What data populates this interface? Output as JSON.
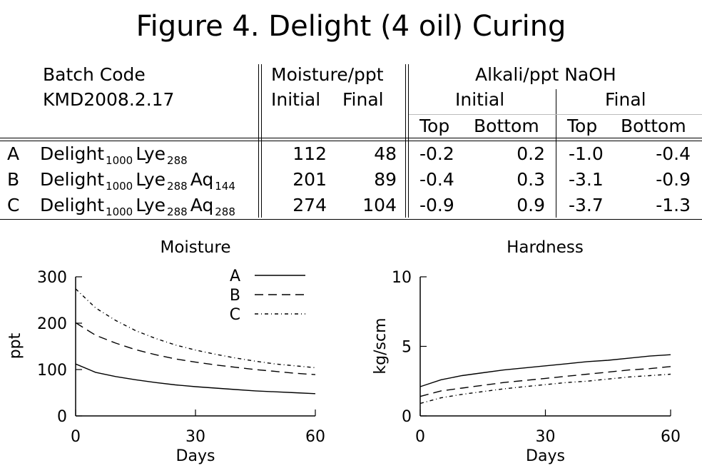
{
  "figure_title": "Figure 4. Delight (4 oil) Curing",
  "table": {
    "batch_code_label": "Batch Code",
    "batch_code_value": "KMD2008.2.17",
    "moisture_header": "Moisture/ppt",
    "moisture_initial": "Initial",
    "moisture_final": "Final",
    "alkali_header": "Alkali/ppt NaOH",
    "alkali_initial": "Initial",
    "alkali_final": "Final",
    "top": "Top",
    "bottom": "Bottom",
    "rows": [
      {
        "id": "A",
        "parts": [
          {
            "name": "Delight",
            "sub": "1000"
          },
          {
            "name": "Lye",
            "sub": "288"
          }
        ],
        "m_init": "112",
        "m_final": "48",
        "a_init_top": "-0.2",
        "a_init_bottom": "0.2",
        "a_final_top": "-1.0",
        "a_final_bottom": "-0.4"
      },
      {
        "id": "B",
        "parts": [
          {
            "name": "Delight",
            "sub": "1000"
          },
          {
            "name": "Lye",
            "sub": "288"
          },
          {
            "name": "Aq",
            "sub": "144"
          }
        ],
        "m_init": "201",
        "m_final": "89",
        "a_init_top": "-0.4",
        "a_init_bottom": "0.3",
        "a_final_top": "-3.1",
        "a_final_bottom": "-0.9"
      },
      {
        "id": "C",
        "parts": [
          {
            "name": "Delight",
            "sub": "1000"
          },
          {
            "name": "Lye",
            "sub": "288"
          },
          {
            "name": "Aq",
            "sub": "288"
          }
        ],
        "m_init": "274",
        "m_final": "104",
        "a_init_top": "-0.9",
        "a_init_bottom": "0.9",
        "a_final_top": "-3.7",
        "a_final_bottom": "-1.3"
      }
    ]
  },
  "chart_data": [
    {
      "type": "line",
      "title": "Moisture",
      "xlabel": "Days",
      "ylabel": "ppt",
      "xlim": [
        0,
        60
      ],
      "ylim": [
        0,
        300
      ],
      "xticks": [
        "0",
        "30",
        "60"
      ],
      "yticks": [
        "0",
        "100",
        "200",
        "300"
      ],
      "legend_position": "top-right",
      "series": [
        {
          "name": "A",
          "style": "solid",
          "x": [
            0,
            5,
            10,
            15,
            20,
            25,
            30,
            35,
            40,
            45,
            50,
            55,
            60
          ],
          "values": [
            112,
            94,
            85,
            78,
            72,
            67,
            63,
            60,
            57,
            54,
            52,
            50,
            48
          ]
        },
        {
          "name": "B",
          "style": "dashed",
          "x": [
            0,
            5,
            10,
            15,
            20,
            25,
            30,
            35,
            40,
            45,
            50,
            55,
            60
          ],
          "values": [
            201,
            174,
            157,
            143,
            132,
            123,
            116,
            110,
            105,
            100,
            96,
            92,
            89
          ]
        },
        {
          "name": "C",
          "style": "dashdot",
          "x": [
            0,
            5,
            10,
            15,
            20,
            25,
            30,
            35,
            40,
            45,
            50,
            55,
            60
          ],
          "values": [
            274,
            233,
            206,
            184,
            167,
            153,
            142,
            133,
            125,
            118,
            112,
            108,
            104
          ]
        }
      ]
    },
    {
      "type": "line",
      "title": "Hardness",
      "xlabel": "Days",
      "ylabel": "kg/scm",
      "xlim": [
        0,
        60
      ],
      "ylim": [
        0,
        10
      ],
      "xticks": [
        "0",
        "30",
        "60"
      ],
      "yticks": [
        "0",
        "5",
        "10"
      ],
      "series": [
        {
          "name": "A",
          "style": "solid",
          "x": [
            0,
            5,
            10,
            15,
            20,
            25,
            30,
            35,
            40,
            45,
            50,
            55,
            60
          ],
          "values": [
            2.1,
            2.6,
            2.9,
            3.1,
            3.3,
            3.45,
            3.6,
            3.75,
            3.9,
            4.0,
            4.15,
            4.3,
            4.4
          ]
        },
        {
          "name": "B",
          "style": "dashed",
          "x": [
            0,
            5,
            10,
            15,
            20,
            25,
            30,
            35,
            40,
            45,
            50,
            55,
            60
          ],
          "values": [
            1.4,
            1.8,
            2.0,
            2.2,
            2.4,
            2.55,
            2.7,
            2.85,
            3.0,
            3.15,
            3.3,
            3.4,
            3.55
          ]
        },
        {
          "name": "C",
          "style": "dashdot",
          "x": [
            0,
            5,
            10,
            15,
            20,
            25,
            30,
            35,
            40,
            45,
            50,
            55,
            60
          ],
          "values": [
            0.9,
            1.3,
            1.55,
            1.75,
            1.95,
            2.1,
            2.25,
            2.4,
            2.5,
            2.65,
            2.8,
            2.9,
            3.0
          ]
        }
      ]
    }
  ]
}
